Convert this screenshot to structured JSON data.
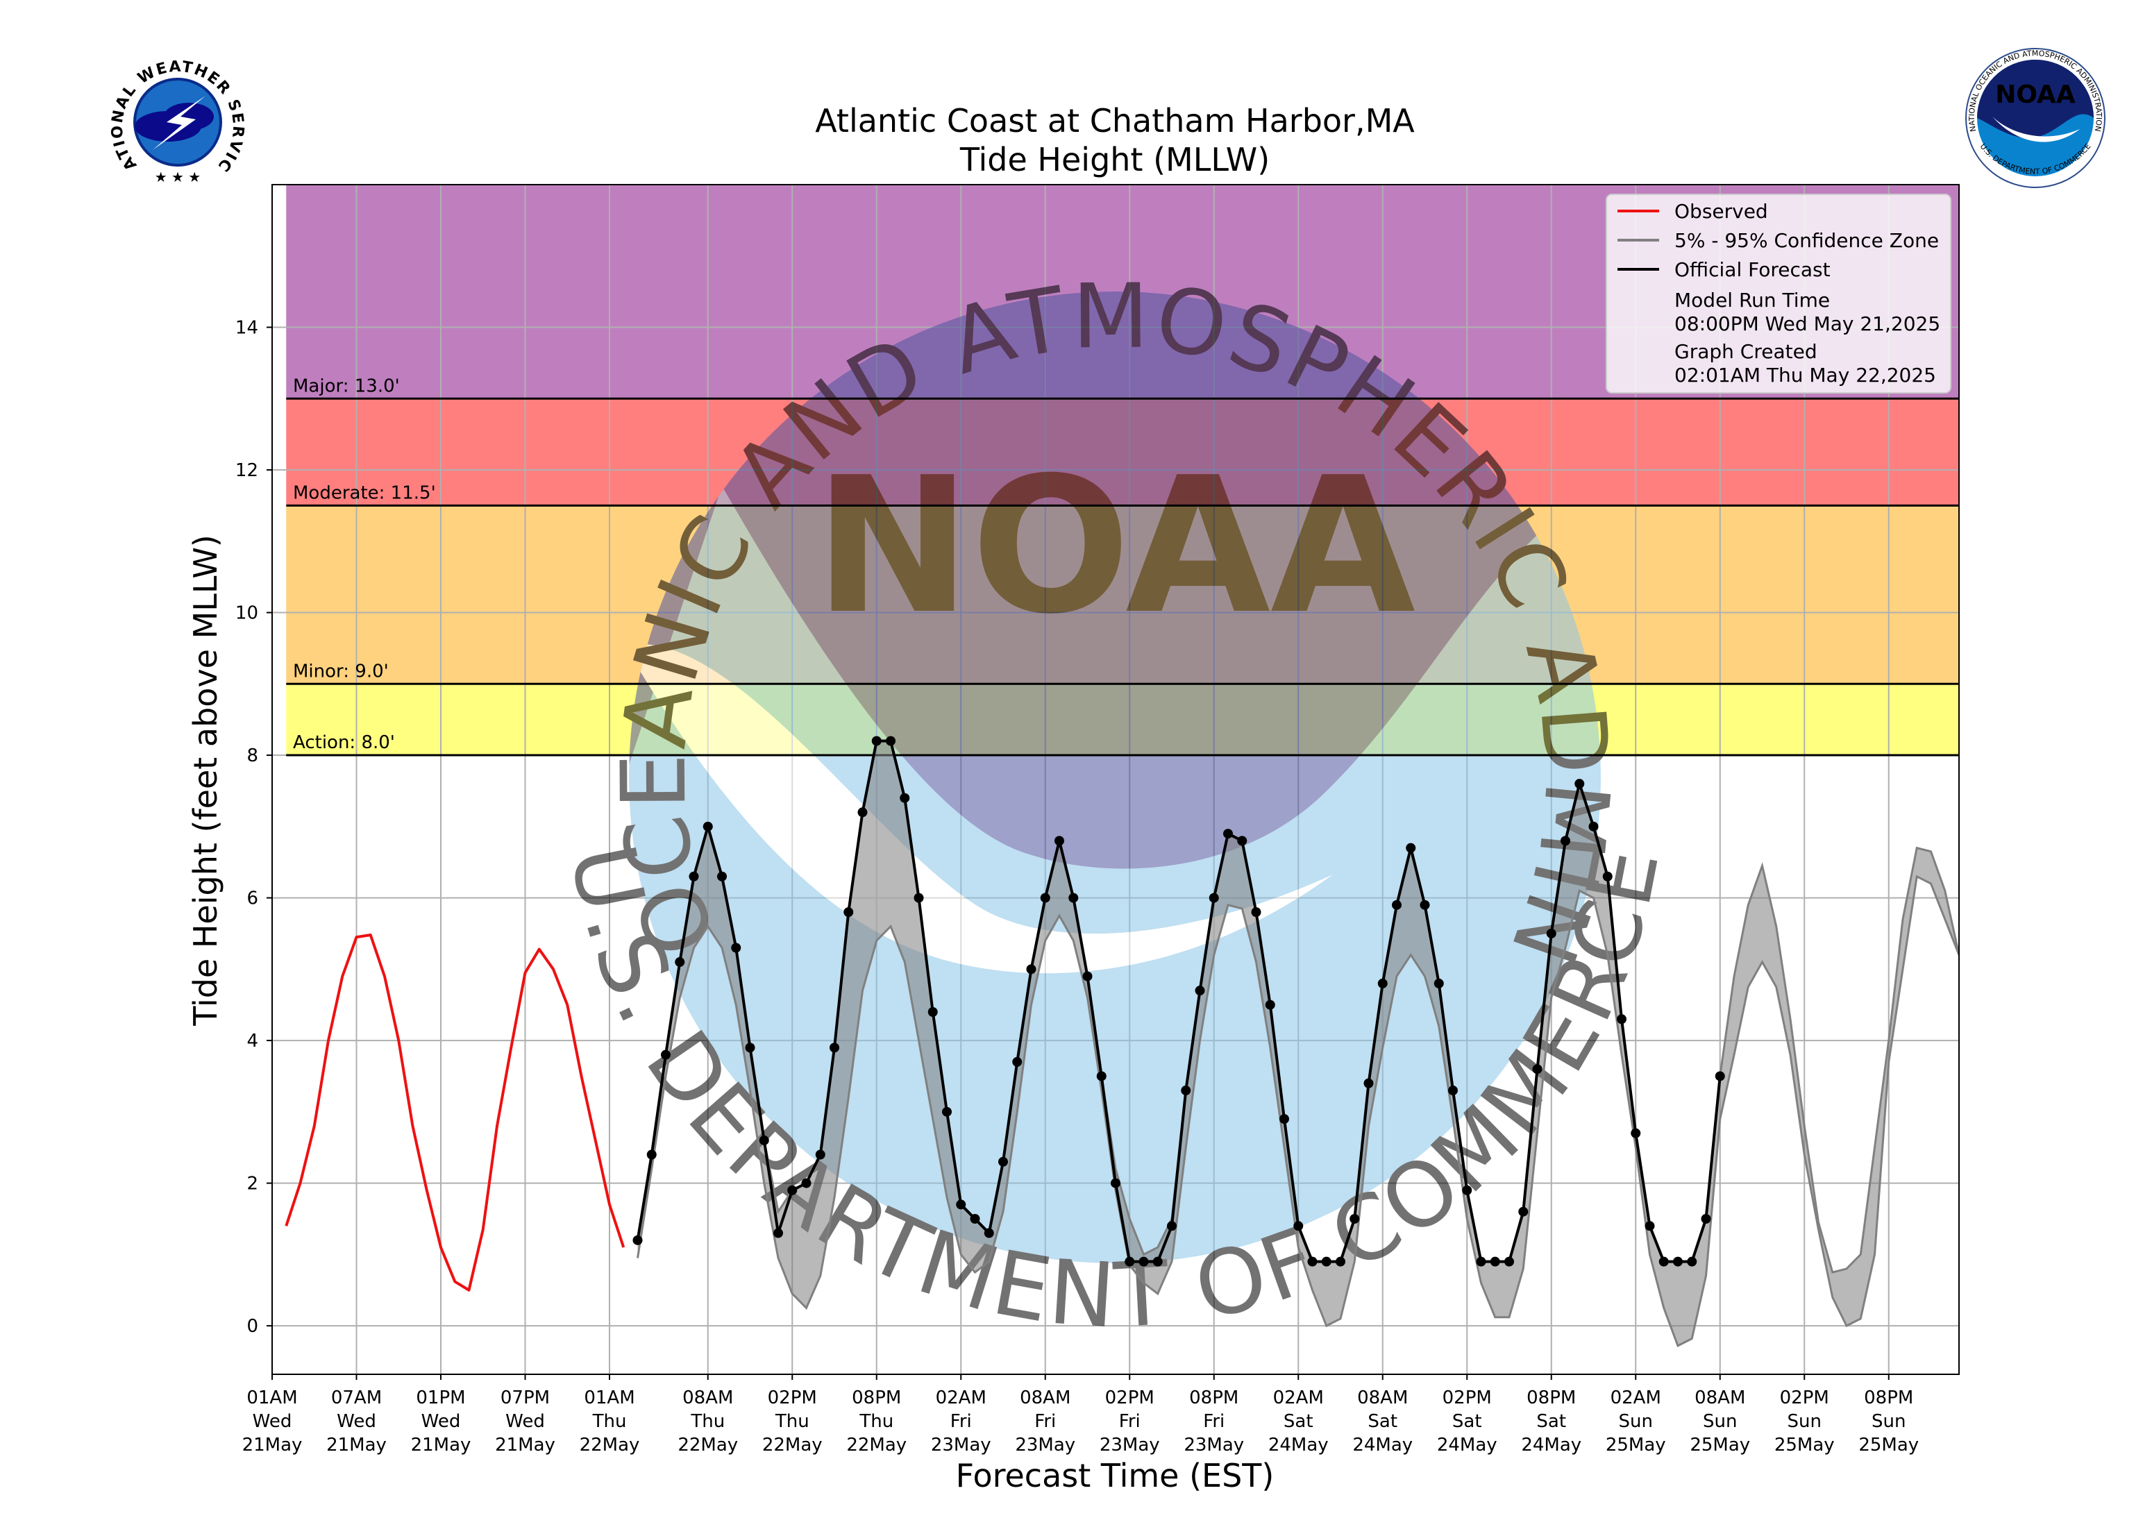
{
  "chart_data": {
    "type": "line",
    "title": "Atlantic Coast at Chatham Harbor,MA",
    "subtitle": "Tide Height (MLLW)",
    "xlabel": "Forecast Time (EST)",
    "ylabel": "Tide Height (feet above MLLW)",
    "grid": true,
    "legend": "upper right",
    "xlim": [
      "21May 01AM",
      "26May 01AM"
    ],
    "ylim": [
      -0.68,
      16
    ],
    "yticks": [
      0,
      2,
      4,
      6,
      8,
      10,
      12,
      14
    ],
    "xticks": [
      {
        "value": "21May 01AM",
        "label": [
          "01AM",
          "Wed",
          "21May"
        ]
      },
      {
        "value": "21May 07AM",
        "label": [
          "07AM",
          "Wed",
          "21May"
        ]
      },
      {
        "value": "21May 01PM",
        "label": [
          "01PM",
          "Wed",
          "21May"
        ]
      },
      {
        "value": "21May 07PM",
        "label": [
          "07PM",
          "Wed",
          "21May"
        ]
      },
      {
        "value": "22May 01AM",
        "label": [
          "01AM",
          "Thu",
          "22May"
        ]
      },
      {
        "value": "22May 08AM",
        "label": [
          "08AM",
          "Thu",
          "22May"
        ]
      },
      {
        "value": "22May 02PM",
        "label": [
          "02PM",
          "Thu",
          "22May"
        ]
      },
      {
        "value": "22May 08PM",
        "label": [
          "08PM",
          "Thu",
          "22May"
        ]
      },
      {
        "value": "23May 02AM",
        "label": [
          "02AM",
          "Fri",
          "23May"
        ]
      },
      {
        "value": "23May 08AM",
        "label": [
          "08AM",
          "Fri",
          "23May"
        ]
      },
      {
        "value": "23May 02PM",
        "label": [
          "02PM",
          "Fri",
          "23May"
        ]
      },
      {
        "value": "23May 08PM",
        "label": [
          "08PM",
          "Fri",
          "23May"
        ]
      },
      {
        "value": "24May 02AM",
        "label": [
          "02AM",
          "Sat",
          "24May"
        ]
      },
      {
        "value": "24May 08AM",
        "label": [
          "08AM",
          "Sat",
          "24May"
        ]
      },
      {
        "value": "24May 02PM",
        "label": [
          "02PM",
          "Sat",
          "24May"
        ]
      },
      {
        "value": "24May 08PM",
        "label": [
          "08PM",
          "Sat",
          "24May"
        ]
      },
      {
        "value": "25May 02AM",
        "label": [
          "02AM",
          "Sun",
          "25May"
        ]
      },
      {
        "value": "25May 08AM",
        "label": [
          "08AM",
          "Sun",
          "25May"
        ]
      },
      {
        "value": "25May 02PM",
        "label": [
          "02PM",
          "Sun",
          "25May"
        ]
      },
      {
        "value": "25May 08PM",
        "label": [
          "08PM",
          "Sun",
          "25May"
        ]
      }
    ],
    "thresholds": [
      {
        "label": "Action: 8.0'",
        "value": 8,
        "color": "#ffff80"
      },
      {
        "label": "Minor: 9.0'",
        "value": 9,
        "color": "#ffd27f"
      },
      {
        "label": "Moderate: 11.5'",
        "value": 11.5,
        "color": "#ff7f7f"
      },
      {
        "label": "Major: 13.0'",
        "value": 13,
        "color": "#bf7fbf"
      }
    ],
    "x": [
      "21May 02AM",
      "21May 03AM",
      "21May 04AM",
      "21May 05AM",
      "21May 06AM",
      "21May 07AM",
      "21May 08AM",
      "21May 09AM",
      "21May 10AM",
      "21May 11AM",
      "21May 12PM",
      "21May 01PM",
      "21May 02PM",
      "21May 03PM",
      "21May 04PM",
      "21May 05PM",
      "21May 06PM",
      "21May 07PM",
      "21May 08PM",
      "21May 09PM",
      "21May 10PM",
      "21May 11PM",
      "22May 12AM",
      "22May 01AM",
      "22May 02AM",
      "22May 03AM",
      "22May 04AM",
      "22May 05AM",
      "22May 06AM",
      "22May 07AM",
      "22May 08AM",
      "22May 09AM",
      "22May 10AM",
      "22May 11AM",
      "22May 12PM",
      "22May 01PM",
      "22May 02PM",
      "22May 03PM",
      "22May 04PM",
      "22May 05PM",
      "22May 06PM",
      "22May 07PM",
      "22May 08PM",
      "22May 09PM",
      "22May 10PM",
      "22May 11PM",
      "23May 12AM",
      "23May 01AM",
      "23May 02AM",
      "23May 03AM",
      "23May 04AM",
      "23May 05AM",
      "23May 06AM",
      "23May 07AM",
      "23May 08AM",
      "23May 09AM",
      "23May 10AM",
      "23May 11AM",
      "23May 12PM",
      "23May 01PM",
      "23May 02PM",
      "23May 03PM",
      "23May 04PM",
      "23May 05PM",
      "23May 06PM",
      "23May 07PM",
      "23May 08PM",
      "23May 09PM",
      "23May 10PM",
      "23May 11PM",
      "24May 12AM",
      "24May 01AM",
      "24May 02AM",
      "24May 03AM",
      "24May 04AM",
      "24May 05AM",
      "24May 06AM",
      "24May 07AM",
      "24May 08AM",
      "24May 09AM",
      "24May 10AM",
      "24May 11AM",
      "24May 12PM",
      "24May 01PM",
      "24May 02PM",
      "24May 03PM",
      "24May 04PM",
      "24May 05PM",
      "24May 06PM",
      "24May 07PM",
      "24May 08PM",
      "24May 09PM",
      "24May 10PM",
      "24May 11PM",
      "25May 12AM",
      "25May 01AM",
      "25May 02AM",
      "25May 03AM",
      "25May 04AM",
      "25May 05AM",
      "25May 06AM",
      "25May 07AM",
      "25May 08AM",
      "25May 09AM",
      "25May 10AM",
      "25May 11AM",
      "25May 12PM",
      "25May 01PM",
      "25May 02PM",
      "25May 03PM",
      "25May 04PM",
      "25May 05PM",
      "25May 06PM",
      "25May 07PM",
      "25May 08PM",
      "25May 09PM",
      "25May 10PM",
      "25May 11PM",
      "26May 12AM",
      "26May 01AM"
    ],
    "series": [
      {
        "name": "Observed",
        "color": "#ee1111",
        "values": [
          1.4,
          2.0,
          2.8,
          4.0,
          4.9,
          5.45,
          5.48,
          4.9,
          4.0,
          2.8,
          1.9,
          1.1,
          0.62,
          0.5,
          1.35,
          2.8,
          3.9,
          4.95,
          5.28,
          5.0,
          4.5,
          3.5,
          2.6,
          1.7,
          1.1,
          null,
          null,
          null,
          null,
          null,
          null,
          null,
          null,
          null,
          null,
          null,
          null,
          null,
          null,
          null,
          null,
          null,
          null,
          null,
          null,
          null,
          null,
          null,
          null,
          null,
          null,
          null,
          null,
          null,
          null,
          null,
          null,
          null,
          null,
          null,
          null,
          null,
          null,
          null,
          null,
          null,
          null,
          null,
          null,
          null,
          null,
          null,
          null,
          null,
          null,
          null,
          null,
          null,
          null,
          null,
          null,
          null,
          null,
          null,
          null,
          null,
          null,
          null,
          null,
          null,
          null,
          null,
          null,
          null,
          null,
          null,
          null,
          null,
          null,
          null,
          null,
          null,
          null,
          null,
          null,
          null,
          null,
          null,
          null,
          null,
          null,
          null,
          null,
          null,
          null,
          null,
          null,
          null,
          null,
          null
        ]
      },
      {
        "name": "5% - 95% Confidence Zone",
        "color": "#808080",
        "upper": [
          null,
          null,
          null,
          null,
          null,
          null,
          null,
          null,
          null,
          null,
          null,
          null,
          null,
          null,
          null,
          null,
          null,
          null,
          null,
          null,
          null,
          null,
          null,
          null,
          null,
          1.2,
          2.4,
          3.8,
          5.1,
          6.3,
          7.0,
          6.3,
          5.3,
          3.9,
          2.6,
          1.6,
          1.9,
          2.0,
          2.4,
          3.9,
          5.8,
          7.2,
          8.2,
          8.2,
          7.4,
          6.0,
          4.4,
          3.0,
          1.7,
          1.5,
          1.3,
          2.3,
          3.7,
          5.0,
          6.0,
          6.8,
          6.0,
          4.9,
          3.5,
          2.2,
          1.5,
          1.0,
          1.1,
          1.5,
          3.3,
          4.7,
          6.0,
          6.9,
          6.8,
          5.8,
          4.5,
          2.9,
          1.4,
          0.9,
          0.9,
          0.9,
          1.5,
          3.4,
          4.8,
          5.9,
          6.7,
          5.9,
          4.8,
          3.3,
          1.9,
          0.9,
          0.9,
          0.9,
          1.6,
          3.6,
          5.5,
          6.8,
          7.6,
          7.0,
          6.3,
          4.3,
          2.7,
          1.4,
          0.9,
          0.9,
          0.9,
          1.5,
          3.5,
          4.9,
          5.9,
          6.45,
          5.6,
          4.3,
          2.8,
          1.45,
          0.75,
          0.8,
          1.0,
          2.5,
          4.0,
          5.7,
          6.7,
          6.65,
          6.1,
          5.2
        ],
        "lower": [
          null,
          null,
          null,
          null,
          null,
          null,
          null,
          null,
          null,
          null,
          null,
          null,
          null,
          null,
          null,
          null,
          null,
          null,
          null,
          null,
          null,
          null,
          null,
          null,
          null,
          0.95,
          2.2,
          3.5,
          4.6,
          5.3,
          5.6,
          5.3,
          4.5,
          3.3,
          2.0,
          0.95,
          0.45,
          0.25,
          0.7,
          1.8,
          3.2,
          4.7,
          5.4,
          5.6,
          5.1,
          4.0,
          2.9,
          1.8,
          1.0,
          0.75,
          0.9,
          1.6,
          3.0,
          4.5,
          5.4,
          5.75,
          5.4,
          4.6,
          3.3,
          1.9,
          0.85,
          0.6,
          0.45,
          0.9,
          2.5,
          4.0,
          5.2,
          5.9,
          5.85,
          5.1,
          3.9,
          2.5,
          1.1,
          0.5,
          0.0,
          0.1,
          0.9,
          2.8,
          3.9,
          4.9,
          5.2,
          4.9,
          4.2,
          2.9,
          1.5,
          0.6,
          0.12,
          0.12,
          0.8,
          2.7,
          4.6,
          5.3,
          6.1,
          6.0,
          5.2,
          3.8,
          2.5,
          1.0,
          0.25,
          -0.28,
          -0.18,
          0.7,
          2.9,
          3.8,
          4.75,
          5.1,
          4.75,
          3.8,
          2.4,
          1.35,
          0.4,
          0.0,
          0.1,
          1.0,
          3.7,
          5.0,
          6.3,
          6.2,
          5.7,
          5.2
        ]
      },
      {
        "name": "Official Forecast",
        "color": "#000000",
        "marker": true,
        "values": [
          null,
          null,
          null,
          null,
          null,
          null,
          null,
          null,
          null,
          null,
          null,
          null,
          null,
          null,
          null,
          null,
          null,
          null,
          null,
          null,
          null,
          null,
          null,
          null,
          null,
          1.2,
          2.4,
          3.8,
          5.1,
          6.3,
          7.0,
          6.3,
          5.3,
          3.9,
          2.6,
          1.3,
          1.9,
          2.0,
          2.4,
          3.9,
          5.8,
          7.2,
          8.2,
          8.2,
          7.4,
          6.0,
          4.4,
          3.0,
          1.7,
          1.5,
          1.3,
          2.3,
          3.7,
          5.0,
          6.0,
          6.8,
          6.0,
          4.9,
          3.5,
          2.0,
          0.9,
          0.9,
          0.9,
          1.4,
          3.3,
          4.7,
          6.0,
          6.9,
          6.8,
          5.8,
          4.5,
          2.9,
          1.4,
          0.9,
          0.9,
          0.9,
          1.5,
          3.4,
          4.8,
          5.9,
          6.7,
          5.9,
          4.8,
          3.3,
          1.9,
          0.9,
          0.9,
          0.9,
          1.6,
          3.6,
          5.5,
          6.8,
          7.6,
          7.0,
          6.3,
          4.3,
          2.7,
          1.4,
          0.9,
          0.9,
          0.9,
          1.5,
          3.5,
          null,
          null,
          null,
          null,
          null,
          null,
          null,
          null,
          null,
          null,
          null,
          null,
          null,
          null,
          null,
          null,
          null
        ]
      }
    ],
    "legend_notes": [
      {
        "label": "Model Run Time",
        "text": "08:00PM Wed May 21,2025"
      },
      {
        "label": "Graph Created",
        "text": "02:01AM Thu May 22,2025"
      }
    ]
  },
  "watermark": {
    "center": "NOAA",
    "ring_top": "NATIONAL OCEANIC AND ATMOSPHERIC ADMINISTRATION",
    "ring_bottom": "U.S. DEPARTMENT OF COMMERCE"
  },
  "logos": {
    "nws": "NATIONAL WEATHER SERVICE",
    "noaa": "NOAA"
  }
}
